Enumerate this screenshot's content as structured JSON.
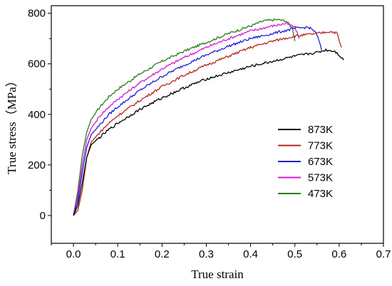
{
  "chart_data": {
    "type": "line",
    "xlabel": "True strain",
    "ylabel": "True stress（MPa）",
    "xlim": [
      -0.05,
      0.7
    ],
    "ylim": [
      -110,
      830
    ],
    "xticks": [
      0.0,
      0.1,
      0.2,
      0.3,
      0.4,
      0.5,
      0.6,
      0.7
    ],
    "xtick_labels": [
      "0.0",
      "0.1",
      "0.2",
      "0.3",
      "0.4",
      "0.5",
      "0.6",
      "0.7"
    ],
    "yticks": [
      0,
      200,
      400,
      600,
      800
    ],
    "ytick_labels": [
      "0",
      "200",
      "400",
      "600",
      "800"
    ],
    "grid": false,
    "legend_position": "right",
    "series": [
      {
        "name": "873K",
        "color": "#000000",
        "x": [
          0.0,
          0.01,
          0.02,
          0.03,
          0.04,
          0.06,
          0.08,
          0.1,
          0.15,
          0.2,
          0.25,
          0.3,
          0.35,
          0.4,
          0.45,
          0.5,
          0.55,
          0.57,
          0.59,
          0.6,
          0.61
        ],
        "y": [
          0,
          40,
          130,
          230,
          280,
          310,
          340,
          365,
          420,
          465,
          505,
          540,
          565,
          590,
          610,
          630,
          645,
          655,
          650,
          635,
          615
        ]
      },
      {
        "name": "773K",
        "color": "#b02a1c",
        "x": [
          0.0,
          0.01,
          0.02,
          0.03,
          0.04,
          0.06,
          0.08,
          0.1,
          0.15,
          0.2,
          0.25,
          0.3,
          0.35,
          0.4,
          0.45,
          0.5,
          0.55,
          0.58,
          0.595,
          0.6,
          0.605
        ],
        "y": [
          0,
          20,
          100,
          230,
          290,
          330,
          365,
          395,
          455,
          510,
          555,
          595,
          630,
          665,
          690,
          710,
          720,
          728,
          722,
          690,
          665
        ]
      },
      {
        "name": "673K",
        "color": "#1f1fd6",
        "x": [
          0.0,
          0.01,
          0.02,
          0.03,
          0.04,
          0.06,
          0.08,
          0.1,
          0.15,
          0.2,
          0.25,
          0.3,
          0.35,
          0.4,
          0.45,
          0.5,
          0.53,
          0.545,
          0.555,
          0.56
        ],
        "y": [
          0,
          60,
          170,
          270,
          320,
          360,
          400,
          430,
          495,
          550,
          595,
          635,
          670,
          700,
          720,
          740,
          745,
          730,
          690,
          655
        ]
      },
      {
        "name": "573K",
        "color": "#d21cd2",
        "x": [
          0.0,
          0.01,
          0.02,
          0.03,
          0.04,
          0.06,
          0.08,
          0.1,
          0.15,
          0.2,
          0.25,
          0.3,
          0.35,
          0.4,
          0.45,
          0.48,
          0.5,
          0.51
        ],
        "y": [
          0,
          80,
          200,
          300,
          345,
          395,
          430,
          460,
          525,
          580,
          625,
          665,
          700,
          730,
          750,
          760,
          745,
          700
        ]
      },
      {
        "name": "473K",
        "color": "#2e7d1e",
        "x": [
          0.0,
          0.01,
          0.02,
          0.03,
          0.04,
          0.06,
          0.08,
          0.1,
          0.15,
          0.2,
          0.25,
          0.3,
          0.35,
          0.4,
          0.43,
          0.46,
          0.48,
          0.495,
          0.5
        ],
        "y": [
          0,
          100,
          240,
          330,
          380,
          430,
          470,
          500,
          560,
          610,
          650,
          685,
          720,
          750,
          770,
          775,
          770,
          740,
          690
        ]
      }
    ]
  }
}
